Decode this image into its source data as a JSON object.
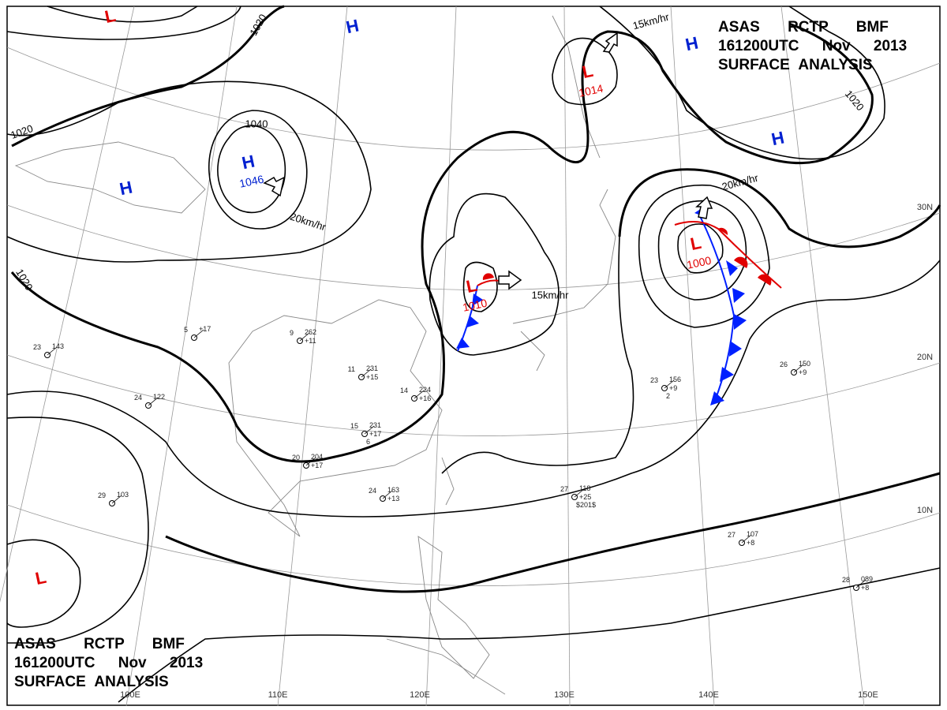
{
  "header": {
    "lines": [
      "ASAS RCTP BMF",
      "161200UTC Nov 2013",
      "SURFACE ANALYSIS"
    ]
  },
  "pressure_centers": [
    {
      "label": "L"
    },
    {
      "label": "H"
    },
    {
      "label": "L",
      "value": "1014"
    },
    {
      "label": "H"
    },
    {
      "label": "H"
    },
    {
      "label": "H",
      "value": "1046"
    },
    {
      "label": "H"
    },
    {
      "label": "L",
      "value": "1000"
    },
    {
      "label": "L",
      "value": "1010"
    },
    {
      "label": "L"
    }
  ],
  "isobar_labels": [
    "1020",
    "1020",
    "1040",
    "1020",
    "1020"
  ],
  "movements": [
    "20km/hr",
    "15km/hr",
    "20km/hr",
    "15km/hr"
  ],
  "latitude_labels": [
    "30N",
    "20N",
    "10N"
  ],
  "longitude_labels": [
    "100E",
    "110E",
    "120E",
    "130E",
    "140E",
    "150E"
  ],
  "stations": [
    {
      "lines": [
        "9",
        "262",
        "+11"
      ]
    },
    {
      "lines": [
        "11",
        "231",
        "+15"
      ]
    },
    {
      "lines": [
        "14",
        "224",
        "+16"
      ]
    },
    {
      "lines": [
        "15",
        "231",
        "+17",
        "6"
      ]
    },
    {
      "lines": [
        "20",
        "204",
        "+17"
      ]
    },
    {
      "lines": [
        "24",
        "163",
        "+13"
      ]
    },
    {
      "lines": [
        "27",
        "118",
        "+25",
        "$201$"
      ]
    },
    {
      "lines": [
        "27",
        "107",
        "+8"
      ]
    },
    {
      "lines": [
        "26",
        "150",
        "+9"
      ]
    },
    {
      "lines": [
        "29",
        "103"
      ]
    },
    {
      "lines": [
        "28",
        "089",
        "+8"
      ]
    },
    {
      "lines": [
        "23",
        "156",
        "+9",
        "2"
      ]
    },
    {
      "lines": [
        "24",
        "122"
      ]
    },
    {
      "lines": [
        "23",
        "143"
      ]
    },
    {
      "lines": [
        "5",
        "+17"
      ]
    }
  ]
}
